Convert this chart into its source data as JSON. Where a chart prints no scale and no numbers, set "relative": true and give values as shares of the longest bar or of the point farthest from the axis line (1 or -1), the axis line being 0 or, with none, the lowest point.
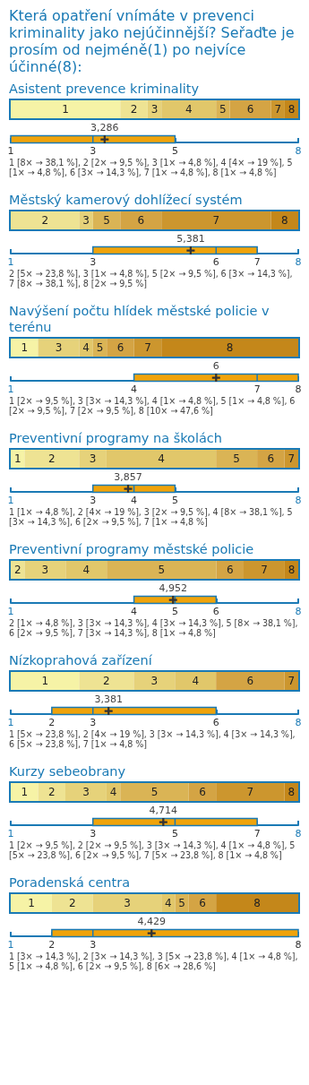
{
  "chart_data": [
    {
      "type": "bar",
      "title": "Která opatření vnímáte v prevenci kriminality jako nejúčinnější? Seřaďte je prosím od nejméně(1) po nejvíce účinné(8):",
      "subtitle": "Asistent prevence kriminality",
      "orientation": "horizontal",
      "stacked": true,
      "relative": true,
      "categories": [
        null
      ],
      "series": [
        {
          "name": "1",
          "color": "#f6f3a6",
          "values": [
            0.381
          ]
        },
        {
          "name": "2",
          "color": "#eee393",
          "values": [
            0.095
          ]
        },
        {
          "name": "3",
          "color": "#e6d27a",
          "values": [
            0.048
          ]
        },
        {
          "name": "4",
          "color": "#e1c76a",
          "values": [
            0.19
          ]
        },
        {
          "name": "5",
          "color": "#dab455",
          "values": [
            0.048
          ]
        },
        {
          "name": "6",
          "color": "#d4a444",
          "values": [
            0.143
          ]
        },
        {
          "name": "7",
          "color": "#cc962e",
          "values": [
            0.048
          ]
        },
        {
          "name": "8",
          "color": "#c4871a",
          "values": [
            0.047
          ]
        }
      ]
    },
    {
      "type": "box",
      "orientation": "horizontal",
      "categories": [
        null
      ],
      "xlim": [
        1,
        8
      ],
      "xticks": [
        1,
        3,
        5,
        8
      ],
      "color": "#f0a30a",
      "boxes": [
        {
          "low": 1,
          "q1": 1,
          "median": 3,
          "q3": 5,
          "high": 5,
          "mean": 3.286
        }
      ],
      "annotations": [
        "3,286",
        "1 [8× → 38,1 %], 2 [2× → 9,5 %], 3 [1× → 4,8 %], 4 [4× → 19 %], 5 [1× → 4,8 %], 6 [3× → 14,3 %], 7 [1× → 4,8 %], 8 [1× → 4,8 %]"
      ]
    },
    {
      "type": "bar",
      "title": "Městský kamerový dohlížecí systém",
      "orientation": "horizontal",
      "stacked": true,
      "relative": true,
      "categories": [
        null
      ],
      "series": [
        {
          "name": "2",
          "color": "#eee393",
          "values": [
            0.238
          ]
        },
        {
          "name": "3",
          "color": "#e6d27a",
          "values": [
            0.048
          ]
        },
        {
          "name": "5",
          "color": "#dab455",
          "values": [
            0.095
          ]
        },
        {
          "name": "6",
          "color": "#d4a444",
          "values": [
            0.143
          ]
        },
        {
          "name": "7",
          "color": "#cc962e",
          "values": [
            0.381
          ]
        },
        {
          "name": "8",
          "color": "#c4871a",
          "values": [
            0.095
          ]
        }
      ]
    },
    {
      "type": "box",
      "orientation": "horizontal",
      "categories": [
        null
      ],
      "xlim": [
        1,
        8
      ],
      "xticks": [
        1,
        3,
        6,
        7,
        8
      ],
      "color": "#f0a30a",
      "boxes": [
        {
          "low": 3,
          "q1": 3,
          "median": 6,
          "q3": 7,
          "high": 7,
          "mean": 5.381
        }
      ],
      "annotations": [
        "5,381",
        "2 [5× → 23,8 %], 3 [1× → 4,8 %], 5 [2× → 9,5 %], 6 [3× → 14,3 %], 7 [8× → 38,1 %], 8 [2× → 9,5 %]"
      ]
    },
    {
      "type": "bar",
      "title": "Navýšení počtu hlídek městské policie v terénu",
      "orientation": "horizontal",
      "stacked": true,
      "relative": true,
      "categories": [
        null
      ],
      "series": [
        {
          "name": "1",
          "color": "#f6f3a6",
          "values": [
            0.095
          ]
        },
        {
          "name": "3",
          "color": "#e6d27a",
          "values": [
            0.143
          ]
        },
        {
          "name": "4",
          "color": "#e1c76a",
          "values": [
            0.048
          ]
        },
        {
          "name": "5",
          "color": "#dab455",
          "values": [
            0.048
          ]
        },
        {
          "name": "6",
          "color": "#d4a444",
          "values": [
            0.095
          ]
        },
        {
          "name": "7",
          "color": "#cc962e",
          "values": [
            0.095
          ]
        },
        {
          "name": "8",
          "color": "#c4871a",
          "values": [
            0.476
          ]
        }
      ]
    },
    {
      "type": "box",
      "orientation": "horizontal",
      "categories": [
        null
      ],
      "xlim": [
        1,
        8
      ],
      "xticks": [
        1,
        4,
        7,
        8
      ],
      "color": "#f0a30a",
      "boxes": [
        {
          "low": 4,
          "q1": 4,
          "median": 7,
          "q3": 8,
          "high": 8,
          "mean": 6
        }
      ],
      "annotations": [
        "6",
        "1 [2× → 9,5 %], 3 [3× → 14,3 %], 4 [1× → 4,8 %], 5 [1× → 4,8 %], 6 [2× → 9,5 %], 7 [2× → 9,5 %], 8 [10× → 47,6 %]"
      ]
    },
    {
      "type": "bar",
      "title": "Preventivní programy na školách",
      "orientation": "horizontal",
      "stacked": true,
      "relative": true,
      "categories": [
        null
      ],
      "series": [
        {
          "name": "1",
          "color": "#f6f3a6",
          "values": [
            0.048
          ]
        },
        {
          "name": "2",
          "color": "#eee393",
          "values": [
            0.19
          ]
        },
        {
          "name": "3",
          "color": "#e6d27a",
          "values": [
            0.095
          ]
        },
        {
          "name": "4",
          "color": "#e1c76a",
          "values": [
            0.381
          ]
        },
        {
          "name": "5",
          "color": "#dab455",
          "values": [
            0.143
          ]
        },
        {
          "name": "6",
          "color": "#d4a444",
          "values": [
            0.095
          ]
        },
        {
          "name": "7",
          "color": "#cc962e",
          "values": [
            0.048
          ]
        }
      ]
    },
    {
      "type": "box",
      "orientation": "horizontal",
      "categories": [
        null
      ],
      "xlim": [
        1,
        8
      ],
      "xticks": [
        1,
        3,
        4,
        5,
        8
      ],
      "color": "#f0a30a",
      "boxes": [
        {
          "low": 3,
          "q1": 3,
          "median": 4,
          "q3": 5,
          "high": 5,
          "mean": 3.857
        }
      ],
      "annotations": [
        "3,857",
        "1 [1× → 4,8 %], 2 [4× → 19 %], 3 [2× → 9,5 %], 4 [8× → 38,1 %], 5 [3× → 14,3 %], 6 [2× → 9,5 %], 7 [1× → 4,8 %]"
      ]
    },
    {
      "type": "bar",
      "title": "Preventivní programy městské policie",
      "orientation": "horizontal",
      "stacked": true,
      "relative": true,
      "categories": [
        null
      ],
      "series": [
        {
          "name": "2",
          "color": "#eee393",
          "values": [
            0.048
          ]
        },
        {
          "name": "3",
          "color": "#e6d27a",
          "values": [
            0.143
          ]
        },
        {
          "name": "4",
          "color": "#e1c76a",
          "values": [
            0.143
          ]
        },
        {
          "name": "5",
          "color": "#dab455",
          "values": [
            0.381
          ]
        },
        {
          "name": "6",
          "color": "#d4a444",
          "values": [
            0.095
          ]
        },
        {
          "name": "7",
          "color": "#cc962e",
          "values": [
            0.143
          ]
        },
        {
          "name": "8",
          "color": "#c4871a",
          "values": [
            0.047
          ]
        }
      ]
    },
    {
      "type": "box",
      "orientation": "horizontal",
      "categories": [
        null
      ],
      "xlim": [
        1,
        8
      ],
      "xticks": [
        1,
        4,
        5,
        6,
        8
      ],
      "color": "#f0a30a",
      "boxes": [
        {
          "low": 4,
          "q1": 4,
          "median": 5,
          "q3": 6,
          "high": 6,
          "mean": 4.952
        }
      ],
      "annotations": [
        "4,952",
        "2 [1× → 4,8 %], 3 [3× → 14,3 %], 4 [3× → 14,3 %], 5 [8× → 38,1 %], 6 [2× → 9,5 %], 7 [3× → 14,3 %], 8 [1× → 4,8 %]"
      ]
    },
    {
      "type": "bar",
      "title": "Nízkoprahová zařízení",
      "orientation": "horizontal",
      "stacked": true,
      "relative": true,
      "categories": [
        null
      ],
      "series": [
        {
          "name": "1",
          "color": "#f6f3a6",
          "values": [
            0.238
          ]
        },
        {
          "name": "2",
          "color": "#eee393",
          "values": [
            0.19
          ]
        },
        {
          "name": "3",
          "color": "#e6d27a",
          "values": [
            0.143
          ]
        },
        {
          "name": "4",
          "color": "#e1c76a",
          "values": [
            0.143
          ]
        },
        {
          "name": "6",
          "color": "#d4a444",
          "values": [
            0.238
          ]
        },
        {
          "name": "7",
          "color": "#cc962e",
          "values": [
            0.048
          ]
        }
      ]
    },
    {
      "type": "box",
      "orientation": "horizontal",
      "categories": [
        null
      ],
      "xlim": [
        1,
        8
      ],
      "xticks": [
        1,
        2,
        3,
        6,
        8
      ],
      "color": "#f0a30a",
      "boxes": [
        {
          "low": 2,
          "q1": 2,
          "median": 3,
          "q3": 6,
          "high": 6,
          "mean": 3.381
        }
      ],
      "annotations": [
        "3,381",
        "1 [5× → 23,8 %], 2 [4× → 19 %], 3 [3× → 14,3 %], 4 [3× → 14,3 %], 6 [5× → 23,8 %], 7 [1× → 4,8 %]"
      ]
    },
    {
      "type": "bar",
      "title": "Kurzy sebeobrany",
      "orientation": "horizontal",
      "stacked": true,
      "relative": true,
      "categories": [
        null
      ],
      "series": [
        {
          "name": "1",
          "color": "#f6f3a6",
          "values": [
            0.095
          ]
        },
        {
          "name": "2",
          "color": "#eee393",
          "values": [
            0.095
          ]
        },
        {
          "name": "3",
          "color": "#e6d27a",
          "values": [
            0.143
          ]
        },
        {
          "name": "4",
          "color": "#e1c76a",
          "values": [
            0.048
          ]
        },
        {
          "name": "5",
          "color": "#dab455",
          "values": [
            0.238
          ]
        },
        {
          "name": "6",
          "color": "#d4a444",
          "values": [
            0.095
          ]
        },
        {
          "name": "7",
          "color": "#cc962e",
          "values": [
            0.238
          ]
        },
        {
          "name": "8",
          "color": "#c4871a",
          "values": [
            0.048
          ]
        }
      ]
    },
    {
      "type": "box",
      "orientation": "horizontal",
      "categories": [
        null
      ],
      "xlim": [
        1,
        8
      ],
      "xticks": [
        1,
        3,
        5,
        7,
        8
      ],
      "color": "#f0a30a",
      "boxes": [
        {
          "low": 3,
          "q1": 3,
          "median": 5,
          "q3": 7,
          "high": 7,
          "mean": 4.714
        }
      ],
      "annotations": [
        "4,714",
        "1 [2× → 9,5 %], 2 [2× → 9,5 %], 3 [3× → 14,3 %], 4 [1× → 4,8 %], 5 [5× → 23,8 %], 6 [2× → 9,5 %], 7 [5× → 23,8 %], 8 [1× → 4,8 %]"
      ]
    },
    {
      "type": "bar",
      "title": "Poradenská centra",
      "orientation": "horizontal",
      "stacked": true,
      "relative": true,
      "categories": [
        null
      ],
      "series": [
        {
          "name": "1",
          "color": "#f6f3a6",
          "values": [
            0.143
          ]
        },
        {
          "name": "2",
          "color": "#eee393",
          "values": [
            0.143
          ]
        },
        {
          "name": "3",
          "color": "#e6d27a",
          "values": [
            0.238
          ]
        },
        {
          "name": "4",
          "color": "#e1c76a",
          "values": [
            0.048
          ]
        },
        {
          "name": "5",
          "color": "#dab455",
          "values": [
            0.047
          ]
        },
        {
          "name": "6",
          "color": "#d4a444",
          "values": [
            0.095
          ]
        },
        {
          "name": "8",
          "color": "#c4871a",
          "values": [
            0.286
          ]
        }
      ]
    },
    {
      "type": "box",
      "orientation": "horizontal",
      "categories": [
        null
      ],
      "xlim": [
        1,
        8
      ],
      "xticks": [
        1,
        2,
        3,
        8
      ],
      "color": "#f0a30a",
      "boxes": [
        {
          "low": 2,
          "q1": 2,
          "median": 3,
          "q3": 8,
          "high": 8,
          "mean": 4.429
        }
      ],
      "annotations": [
        "4,429",
        "1 [3× → 14,3 %], 2 [3× → 14,3 %], 3 [5× → 23,8 %], 4 [1× → 4,8 %], 5 [1× → 4,8 %], 6 [2× → 9,5 %], 8 [6× → 28,6 %]"
      ]
    }
  ]
}
